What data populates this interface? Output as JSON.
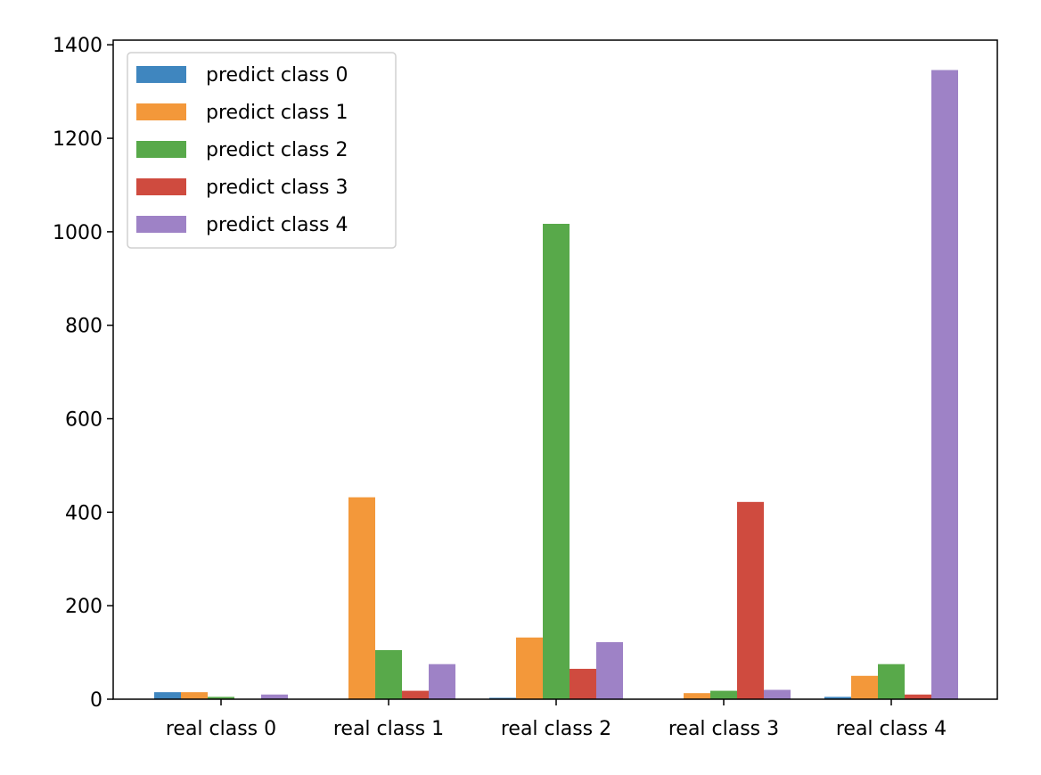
{
  "chart_data": {
    "type": "bar",
    "title": "",
    "xlabel": "",
    "ylabel": "",
    "categories": [
      "real class 0",
      "real class 1",
      "real class 2",
      "real class 3",
      "real class 4"
    ],
    "ylim": [
      0,
      1410
    ],
    "yticks": [
      0,
      200,
      400,
      600,
      800,
      1000,
      1200,
      1400
    ],
    "grid": false,
    "legend_position": "top-left",
    "series": [
      {
        "name": "predict class 0",
        "color": "#3f86bf",
        "values": [
          15,
          0,
          3,
          0,
          5
        ]
      },
      {
        "name": "predict class 1",
        "color": "#f3983a",
        "values": [
          15,
          432,
          132,
          13,
          50
        ]
      },
      {
        "name": "predict class 2",
        "color": "#58a94a",
        "values": [
          5,
          105,
          1017,
          18,
          75
        ]
      },
      {
        "name": "predict class 3",
        "color": "#cf4b3f",
        "values": [
          0,
          18,
          65,
          422,
          10
        ]
      },
      {
        "name": "predict class 4",
        "color": "#9e82c6",
        "values": [
          10,
          75,
          122,
          20,
          1346
        ]
      }
    ]
  }
}
